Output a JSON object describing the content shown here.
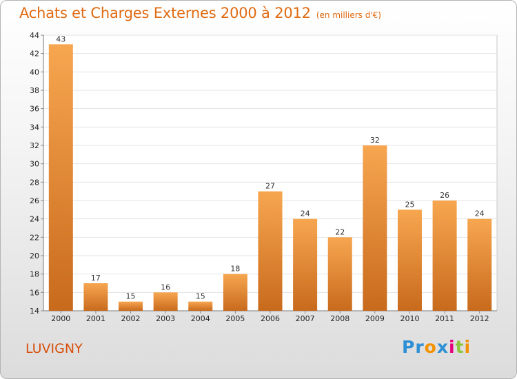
{
  "header": {
    "title": "Achats et Charges Externes 2000 à 2012",
    "unit": "(en milliers d'€)"
  },
  "place": "LUVIGNY",
  "logo": {
    "letters": [
      "P",
      "r",
      "o",
      "x",
      "i",
      "t",
      "i"
    ],
    "colors": [
      "#2d8fd5",
      "#2d8fd5",
      "#f39200",
      "#2d8fd5",
      "#e6007e",
      "#8cc63e",
      "#f39200"
    ]
  },
  "colors": {
    "bar_light": "#f7a650",
    "bar_dark": "#c86a1c",
    "title": "#e06a10"
  },
  "chart_data": {
    "type": "bar",
    "title": "Achats et Charges Externes 2000 à 2012",
    "subtitle": "(en milliers d'€)",
    "xlabel": "",
    "ylabel": "",
    "categories": [
      "2000",
      "2001",
      "2002",
      "2003",
      "2004",
      "2005",
      "2006",
      "2007",
      "2008",
      "2009",
      "2010",
      "2011",
      "2012"
    ],
    "values": [
      43,
      17,
      15,
      16,
      15,
      18,
      27,
      24,
      22,
      32,
      25,
      26,
      24
    ],
    "ylim": [
      14,
      44
    ],
    "yticks": [
      14,
      16,
      18,
      20,
      22,
      24,
      26,
      28,
      30,
      32,
      34,
      36,
      38,
      40,
      42,
      44
    ],
    "grid": true,
    "legend": "none"
  }
}
